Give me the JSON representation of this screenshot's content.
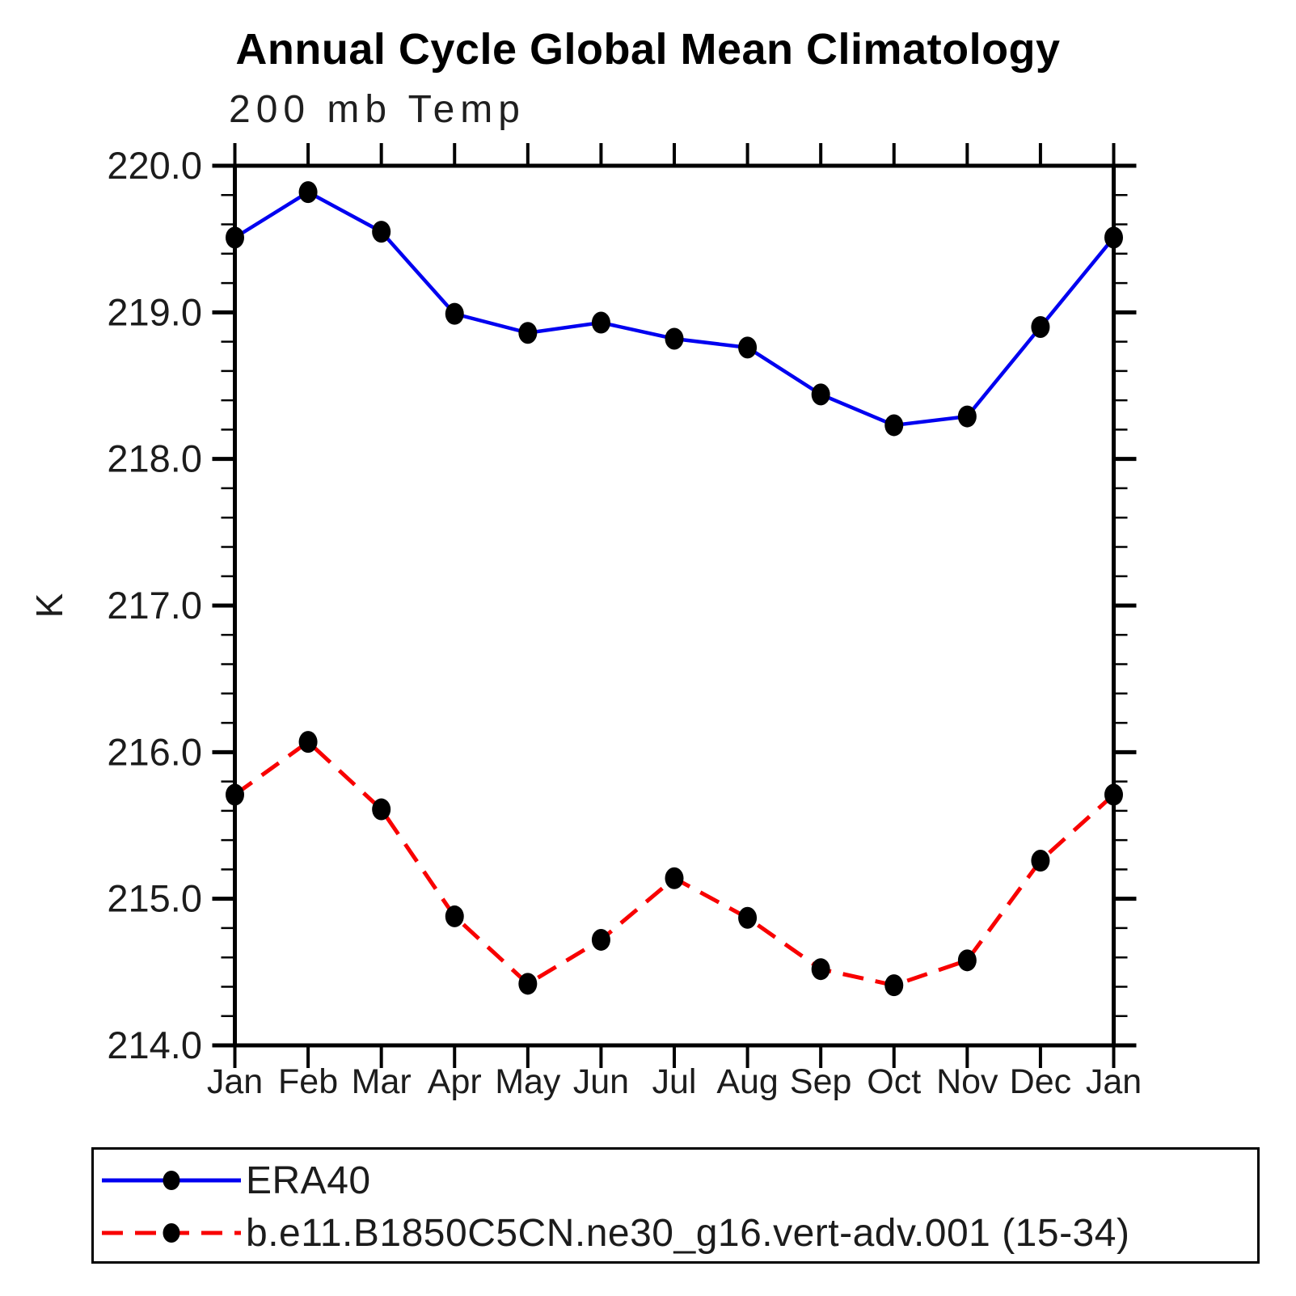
{
  "page": {
    "title": "Annual Cycle Global Mean Climatology"
  },
  "chart_data": {
    "type": "line",
    "title": "Annual Cycle Global Mean Climatology",
    "subtitle": "200 mb Temp",
    "xlabel": "",
    "ylabel": "K",
    "ylim": [
      214.0,
      220.0
    ],
    "y_major_tick_step": 1.0,
    "y_minor_tick_step": 0.2,
    "y_tick_labels": [
      "220.0",
      "219.0",
      "218.0",
      "217.0",
      "216.0",
      "215.0",
      "214.0"
    ],
    "categories": [
      "Jan",
      "Feb",
      "Mar",
      "Apr",
      "May",
      "Jun",
      "Jul",
      "Aug",
      "Sep",
      "Oct",
      "Nov",
      "Dec",
      "Jan"
    ],
    "series": [
      {
        "name": "ERA40",
        "color": "#0000F0",
        "line_style": "solid",
        "marker": "filled-circle",
        "marker_color": "#000000",
        "values": [
          219.51,
          219.82,
          219.55,
          218.99,
          218.86,
          218.93,
          218.82,
          218.76,
          218.44,
          218.23,
          218.29,
          218.9,
          219.51
        ]
      },
      {
        "name": "b.e11.B1850C5CN.ne30_g16.vert-adv.001 (15-34)",
        "color": "#F80000",
        "line_style": "dashed",
        "marker": "filled-circle",
        "marker_color": "#000000",
        "values": [
          215.71,
          216.07,
          215.61,
          214.88,
          214.42,
          214.72,
          215.14,
          214.87,
          214.52,
          214.41,
          214.58,
          215.26,
          215.71
        ]
      }
    ],
    "grid": "off",
    "legend_position": "bottom"
  },
  "legend": {
    "items": [
      {
        "label": "ERA40"
      },
      {
        "label": "b.e11.B1850C5CN.ne30_g16.vert-adv.001 (15-34)"
      }
    ]
  }
}
